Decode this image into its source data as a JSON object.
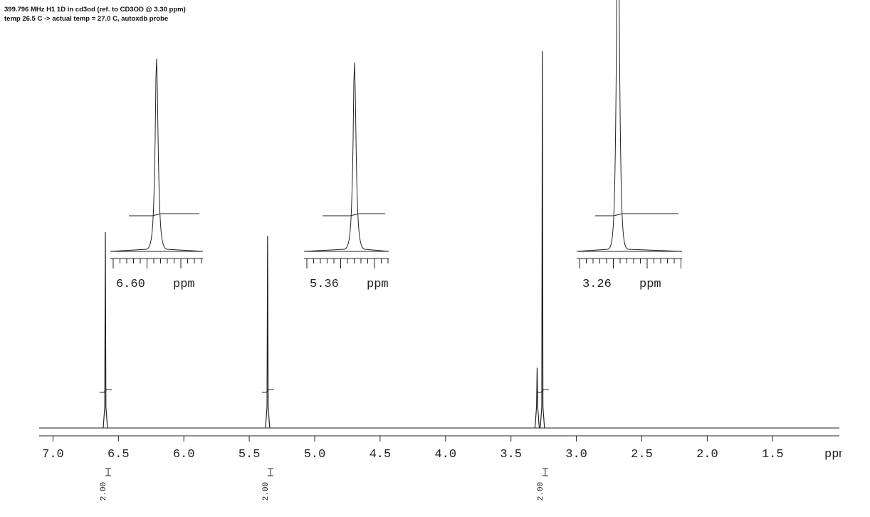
{
  "header": {
    "line1": "399.796 MHz H1 1D in cd3od (ref. to CD3OD @ 3.30 ppm)",
    "line2": "temp 26.5 C -> actual temp = 27.0 C, autoxdb probe"
  },
  "chart_data": {
    "type": "spectrum",
    "x_label": "ppm",
    "x": [
      6.6,
      5.36,
      3.3,
      3.26
    ],
    "values": [
      52,
      51,
      16,
      100
    ],
    "integrals": [
      {
        "value": 2,
        "label": "2.00"
      },
      {
        "value": 2,
        "label": "2.00"
      },
      null,
      {
        "value": 2,
        "label": "2.00"
      }
    ],
    "insets": [
      {
        "value": 6.6,
        "label": "6.60",
        "unit": "ppm"
      },
      {
        "value": 5.36,
        "label": "5.36",
        "unit": "ppm"
      },
      {
        "value": 3.26,
        "label": "3.26",
        "unit": "ppm"
      }
    ],
    "xlim": [
      7.25,
      0.99
    ],
    "ylim": [
      0,
      100
    ],
    "xticks": [
      {
        "value": 7,
        "label": "7.0"
      },
      6.5,
      {
        "value": 6,
        "label": "6.0"
      },
      5.5,
      {
        "value": 5,
        "label": "5.0"
      },
      4.5,
      {
        "value": 4,
        "label": "4.0"
      },
      3.5,
      {
        "value": 3,
        "label": "3.0"
      },
      2.5,
      {
        "value": 2,
        "label": "2.0"
      },
      1.5
    ],
    "color": "#222222"
  }
}
